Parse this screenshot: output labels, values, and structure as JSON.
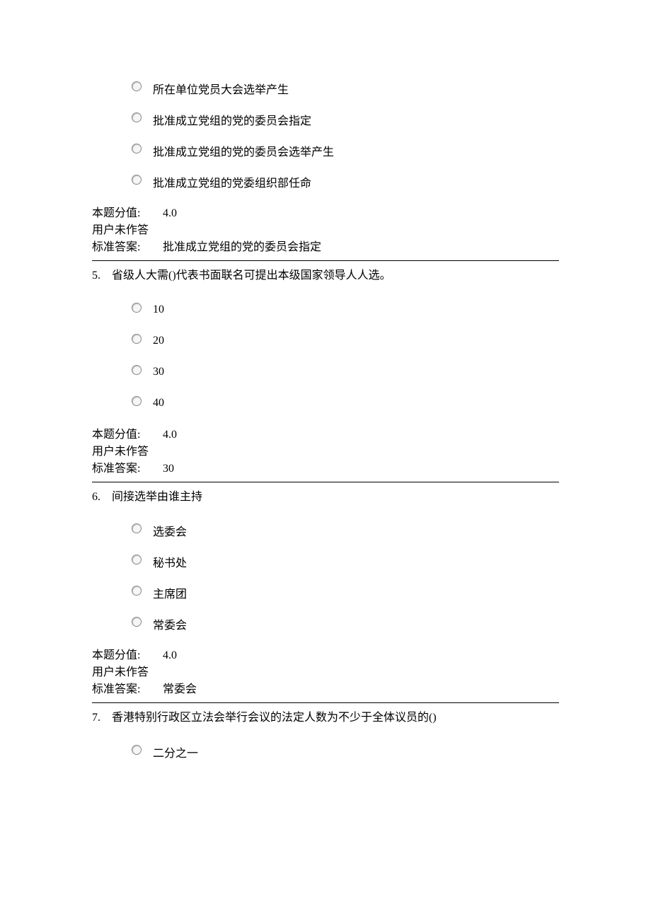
{
  "labels": {
    "score_label": "本题分值:",
    "not_answered": "用户未作答",
    "std_answer_label": "标准答案:"
  },
  "q4": {
    "options": [
      "所在单位党员大会选举产生",
      "批准成立党组的党的委员会指定",
      "批准成立党组的党的委员会选举产生",
      "批准成立党组的党委组织部任命"
    ],
    "score": "4.0",
    "answer": "批准成立党组的党的委员会指定"
  },
  "q5": {
    "number": "5.",
    "text": "省级人大需()代表书面联名可提出本级国家领导人人选。",
    "options": [
      "10",
      "20",
      "30",
      "40"
    ],
    "score": "4.0",
    "answer": "30"
  },
  "q6": {
    "number": "6.",
    "text": "间接选举由谁主持",
    "options": [
      "选委会",
      "秘书处",
      "主席团",
      "常委会"
    ],
    "score": "4.0",
    "answer": "常委会"
  },
  "q7": {
    "number": "7.",
    "text": "香港特别行政区立法会举行会议的法定人数为不少于全体议员的()",
    "options": [
      "二分之一"
    ]
  }
}
